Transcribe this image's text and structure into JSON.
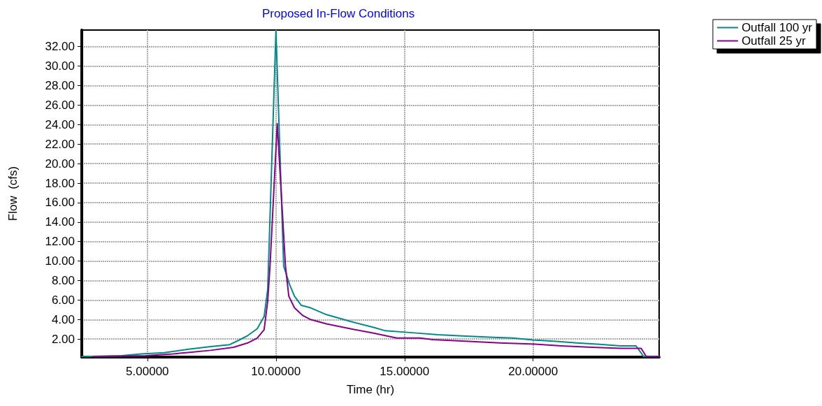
{
  "chart_data": {
    "type": "line",
    "title": "Proposed In-Flow Conditions",
    "xlabel": "Time (hr)",
    "ylabel": "Flow  (cfs)",
    "xlim": [
      2.45,
      24.9
    ],
    "xticks": [
      {
        "value": 5,
        "label": "5.00000"
      },
      {
        "value": 10,
        "label": "10.00000"
      },
      {
        "value": 15,
        "label": "15.00000"
      },
      {
        "value": 20,
        "label": "20.00000"
      }
    ],
    "ylim": [
      0.15,
      33.7
    ],
    "yticks": [
      {
        "value": 2,
        "label": "2.00"
      },
      {
        "value": 4,
        "label": "4.00"
      },
      {
        "value": 6,
        "label": "6.00"
      },
      {
        "value": 8,
        "label": "8.00"
      },
      {
        "value": 10,
        "label": "10.00"
      },
      {
        "value": 12,
        "label": "12.00"
      },
      {
        "value": 14,
        "label": "14.00"
      },
      {
        "value": 16,
        "label": "16.00"
      },
      {
        "value": 18,
        "label": "18.00"
      },
      {
        "value": 20,
        "label": "20.00"
      },
      {
        "value": 22,
        "label": "22.00"
      },
      {
        "value": 24,
        "label": "24.00"
      },
      {
        "value": 26,
        "label": "26.00"
      },
      {
        "value": 28,
        "label": "28.00"
      },
      {
        "value": 30,
        "label": "30.00"
      },
      {
        "value": 32,
        "label": "32.00"
      }
    ],
    "grid": true,
    "legend": "top right",
    "marker": "none",
    "line_style": "solid",
    "series": [
      {
        "name": "Outfall 100 yr",
        "color": "#008b8b",
        "x": [
          2.45,
          4.0,
          4.75,
          5.65,
          6.65,
          7.4,
          8.2,
          8.55,
          8.9,
          9.27,
          9.54,
          9.68,
          10.0,
          10.3,
          10.53,
          10.72,
          10.99,
          11.35,
          11.97,
          12.9,
          13.8,
          14.25,
          15.3,
          16.3,
          17.4,
          18.3,
          19.2,
          20.0,
          20.9,
          21.7,
          22.6,
          23.4,
          24.0,
          24.3,
          24.9
        ],
        "values": [
          0.2,
          0.3,
          0.48,
          0.6,
          0.98,
          1.2,
          1.43,
          1.87,
          2.35,
          3.05,
          4.3,
          7.1,
          33.6,
          9.5,
          7.6,
          6.4,
          5.45,
          5.2,
          4.5,
          3.8,
          3.2,
          2.85,
          2.65,
          2.45,
          2.3,
          2.2,
          2.1,
          1.9,
          1.77,
          1.6,
          1.45,
          1.3,
          1.3,
          0.2,
          0.2
        ]
      },
      {
        "name": "Outfall 25 yr",
        "color": "#8b008b",
        "x": [
          2.9,
          4.93,
          6.0,
          6.65,
          7.45,
          8.35,
          8.9,
          9.27,
          9.54,
          9.68,
          9.77,
          10.05,
          10.37,
          10.5,
          10.72,
          11.05,
          11.35,
          11.97,
          12.9,
          13.8,
          14.7,
          15.6,
          16.1,
          17.5,
          18.7,
          19.9,
          21.1,
          22.3,
          23.4,
          24.2,
          24.4,
          24.9
        ],
        "values": [
          0.2,
          0.3,
          0.48,
          0.63,
          0.84,
          1.15,
          1.6,
          2.1,
          2.95,
          5.9,
          9.5,
          24.1,
          9.5,
          6.4,
          5.2,
          4.4,
          4.0,
          3.55,
          3.05,
          2.6,
          2.1,
          2.1,
          1.95,
          1.77,
          1.6,
          1.5,
          1.3,
          1.15,
          1.05,
          1.05,
          0.2,
          0.2
        ]
      }
    ]
  }
}
